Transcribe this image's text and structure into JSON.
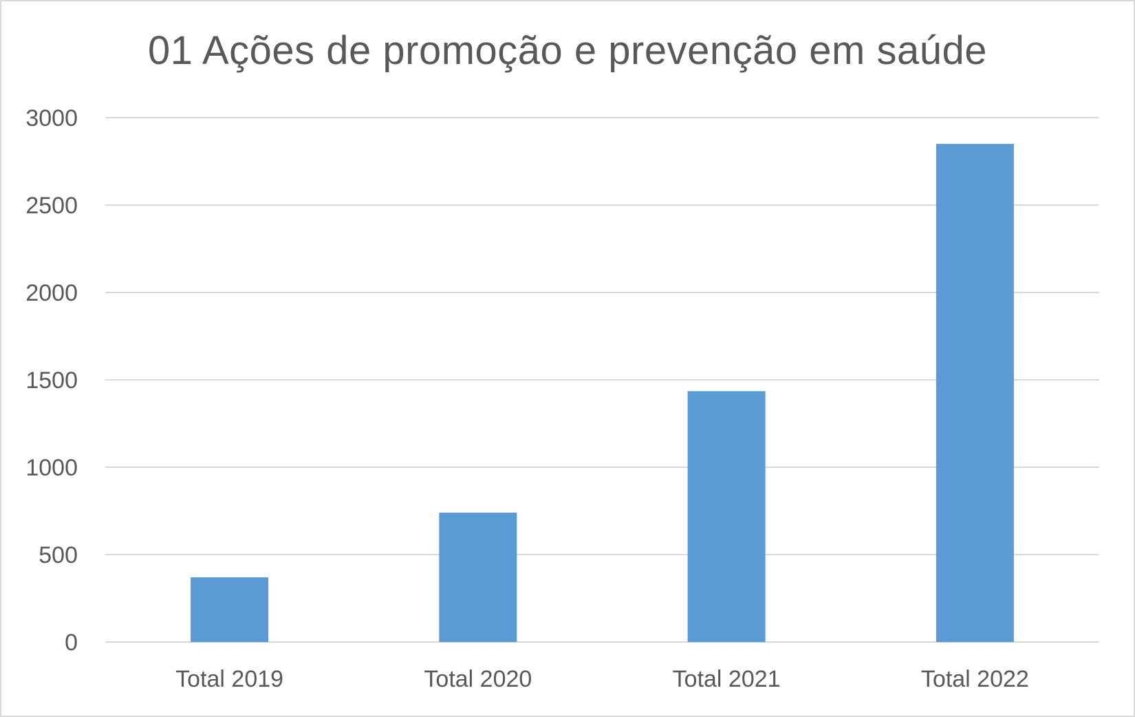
{
  "chart_data": {
    "type": "bar",
    "title": "01 Ações de promoção e prevenção em saúde",
    "categories": [
      "Total 2019",
      "Total 2020",
      "Total 2021",
      "Total 2022"
    ],
    "values": [
      370,
      740,
      1435,
      2850
    ],
    "xlabel": "",
    "ylabel": "",
    "ylim": [
      0,
      3000
    ],
    "yticks": [
      0,
      500,
      1000,
      1500,
      2000,
      2500,
      3000
    ],
    "grid": "horizontal",
    "legend": "none",
    "colors": {
      "bar": "#5b9bd5",
      "grid": "#d9d9d9",
      "text": "#595959"
    }
  }
}
